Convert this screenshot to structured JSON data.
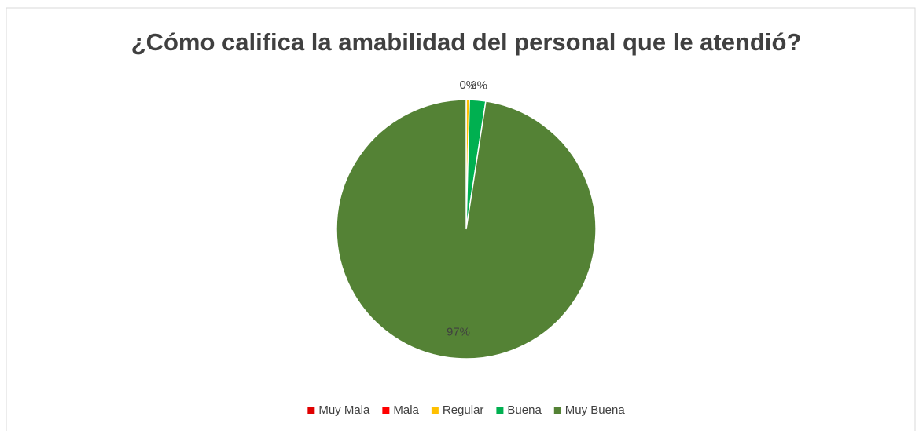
{
  "chart_data": {
    "type": "pie",
    "title": "¿Cómo califica la amabilidad del personal que le atendió?",
    "categories": [
      "Muy Mala",
      "Mala",
      "Regular",
      "Buena",
      "Muy Buena"
    ],
    "values": [
      0,
      0,
      0.4,
      2,
      97
    ],
    "value_labels": [
      null,
      null,
      "0%",
      "2%",
      "97%"
    ],
    "colors": [
      "#e00000",
      "#ff0000",
      "#ffc000",
      "#00b050",
      "#548235"
    ],
    "legend": "bottom"
  }
}
